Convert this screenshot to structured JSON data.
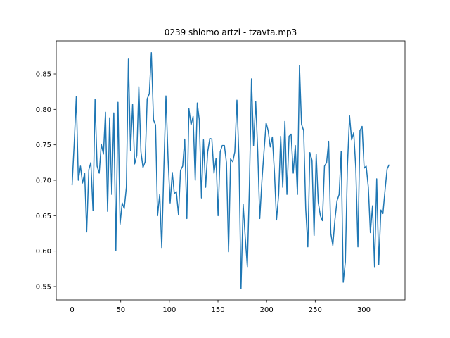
{
  "chart_data": {
    "type": "line",
    "title": "0239 shlomo artzi - tzavta.mp3",
    "x": [
      0,
      2.1,
      4.3,
      6.4,
      8.6,
      10.7,
      12.9,
      15.0,
      17.2,
      19.3,
      21.5,
      23.6,
      25.7,
      27.9,
      30.0,
      32.2,
      34.3,
      36.5,
      38.6,
      40.8,
      42.9,
      45.0,
      47.2,
      49.3,
      51.5,
      53.6,
      55.8,
      57.9,
      60.1,
      62.2,
      64.3,
      66.5,
      68.6,
      70.8,
      72.9,
      75.1,
      77.2,
      79.4,
      81.5,
      83.7,
      85.8,
      87.9,
      90.1,
      92.2,
      94.4,
      96.5,
      98.7,
      100.8,
      103.0,
      105.1,
      107.2,
      109.4,
      111.5,
      113.7,
      115.8,
      118.0,
      120.1,
      122.3,
      124.4,
      126.6,
      128.7,
      130.8,
      133.0,
      135.1,
      137.3,
      139.4,
      141.6,
      143.7,
      145.9,
      148.0,
      150.1,
      152.3,
      154.4,
      156.6,
      158.7,
      160.9,
      163.0,
      165.2,
      167.3,
      169.5,
      171.6,
      173.7,
      175.9,
      178.0,
      180.2,
      182.3,
      184.5,
      186.6,
      188.8,
      190.9,
      193.0,
      195.2,
      197.3,
      199.5,
      201.6,
      203.8,
      205.9,
      208.1,
      210.2,
      212.4,
      214.5,
      216.6,
      218.8,
      220.9,
      223.1,
      225.2,
      227.4,
      229.5,
      231.7,
      233.8,
      235.9,
      238.1,
      240.2,
      242.4,
      244.5,
      246.7,
      248.8,
      251.0,
      253.1,
      255.3,
      257.4,
      259.5,
      261.7,
      263.8,
      266.0,
      268.1,
      270.3,
      272.4,
      274.6,
      276.7,
      278.8,
      281.0,
      283.1,
      285.3,
      287.4,
      289.6,
      291.7,
      293.9,
      296.0,
      298.2,
      300.3,
      302.4,
      304.6,
      306.7,
      308.9,
      311.0,
      313.2,
      315.3,
      317.5,
      319.6,
      321.7,
      323.9,
      326.0
    ],
    "series": [
      {
        "color": "#1f77b4",
        "values": [
          0.693,
          0.75,
          0.818,
          0.7,
          0.72,
          0.696,
          0.71,
          0.627,
          0.715,
          0.725,
          0.657,
          0.814,
          0.72,
          0.71,
          0.751,
          0.737,
          0.796,
          0.656,
          0.788,
          0.68,
          0.795,
          0.601,
          0.81,
          0.638,
          0.668,
          0.66,
          0.69,
          0.871,
          0.742,
          0.807,
          0.723,
          0.735,
          0.832,
          0.74,
          0.718,
          0.726,
          0.815,
          0.822,
          0.88,
          0.785,
          0.778,
          0.65,
          0.68,
          0.605,
          0.72,
          0.819,
          0.73,
          0.668,
          0.711,
          0.681,
          0.684,
          0.651,
          0.714,
          0.72,
          0.758,
          0.646,
          0.801,
          0.778,
          0.79,
          0.7,
          0.809,
          0.785,
          0.675,
          0.757,
          0.69,
          0.74,
          0.759,
          0.758,
          0.71,
          0.731,
          0.65,
          0.74,
          0.749,
          0.749,
          0.725,
          0.599,
          0.73,
          0.726,
          0.74,
          0.813,
          0.73,
          0.547,
          0.666,
          0.62,
          0.578,
          0.69,
          0.843,
          0.749,
          0.811,
          0.74,
          0.646,
          0.7,
          0.74,
          0.781,
          0.77,
          0.747,
          0.761,
          0.71,
          0.644,
          0.68,
          0.762,
          0.69,
          0.783,
          0.68,
          0.762,
          0.765,
          0.71,
          0.749,
          0.68,
          0.862,
          0.779,
          0.77,
          0.66,
          0.606,
          0.739,
          0.728,
          0.622,
          0.737,
          0.669,
          0.65,
          0.643,
          0.72,
          0.725,
          0.755,
          0.625,
          0.608,
          0.645,
          0.671,
          0.68,
          0.741,
          0.556,
          0.585,
          0.72,
          0.791,
          0.757,
          0.767,
          0.717,
          0.606,
          0.77,
          0.776,
          0.717,
          0.72,
          0.69,
          0.626,
          0.664,
          0.578,
          0.702,
          0.581,
          0.658,
          0.653,
          0.685,
          0.716,
          0.722
        ]
      }
    ],
    "xlim": [
      -16.3,
      342.3
    ],
    "ylim": [
      0.5311,
      0.8967
    ],
    "xticks": [
      0,
      50,
      100,
      150,
      200,
      250,
      300
    ],
    "yticks": [
      0.55,
      {
        "value": 0.6,
        "label": "0.60"
      },
      0.65,
      {
        "value": 0.7,
        "label": "0.70"
      },
      0.75,
      {
        "value": 0.8,
        "label": "0.80"
      },
      0.85
    ]
  }
}
